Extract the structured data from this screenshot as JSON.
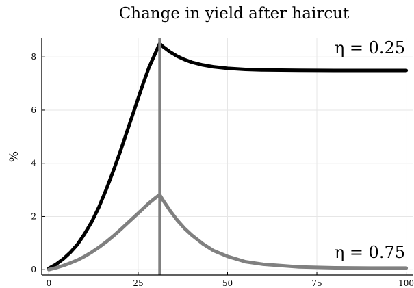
{
  "chart_data": {
    "type": "line",
    "title": "Change in yield after haircut",
    "xlabel": "",
    "ylabel": "%",
    "xlim": [
      -2,
      102
    ],
    "ylim": [
      -0.2,
      8.7
    ],
    "x_ticks": [
      0,
      25,
      50,
      75,
      100
    ],
    "x_tick_labels": [
      "0",
      "25",
      "50",
      "75",
      "100"
    ],
    "y_ticks": [
      0,
      2,
      4,
      6,
      8
    ],
    "y_tick_labels": [
      "0",
      "2",
      "4",
      "6",
      "8"
    ],
    "grid": true,
    "legend": "none",
    "vertical_line": {
      "x": 31,
      "color": "#808080"
    },
    "series": [
      {
        "color": "#000000",
        "x": [
          0,
          2,
          4,
          6,
          8,
          10,
          12,
          14,
          16,
          18,
          20,
          22,
          24,
          26,
          28,
          30,
          31,
          32,
          34,
          36,
          38,
          40,
          43,
          46,
          50,
          55,
          60,
          70,
          80,
          90,
          100
        ],
        "y": [
          0.05,
          0.2,
          0.4,
          0.65,
          0.95,
          1.35,
          1.8,
          2.35,
          3.0,
          3.7,
          4.45,
          5.25,
          6.05,
          6.85,
          7.6,
          8.2,
          8.5,
          8.38,
          8.18,
          8.02,
          7.9,
          7.8,
          7.7,
          7.63,
          7.57,
          7.53,
          7.51,
          7.5,
          7.49,
          7.49,
          7.49
        ],
        "annotation": "η = 0.25"
      },
      {
        "color": "#808080",
        "x": [
          0,
          2,
          4,
          6,
          8,
          10,
          12,
          14,
          16,
          18,
          20,
          22,
          24,
          26,
          28,
          30,
          31,
          32,
          34,
          36,
          38,
          40,
          43,
          46,
          50,
          55,
          60,
          70,
          80,
          90,
          100
        ],
        "y": [
          0.0,
          0.07,
          0.15,
          0.25,
          0.36,
          0.5,
          0.66,
          0.84,
          1.04,
          1.26,
          1.5,
          1.75,
          2.0,
          2.25,
          2.5,
          2.72,
          2.82,
          2.6,
          2.2,
          1.85,
          1.55,
          1.3,
          0.98,
          0.72,
          0.5,
          0.3,
          0.2,
          0.1,
          0.07,
          0.06,
          0.06
        ],
        "annotation": "η = 0.75"
      }
    ]
  }
}
